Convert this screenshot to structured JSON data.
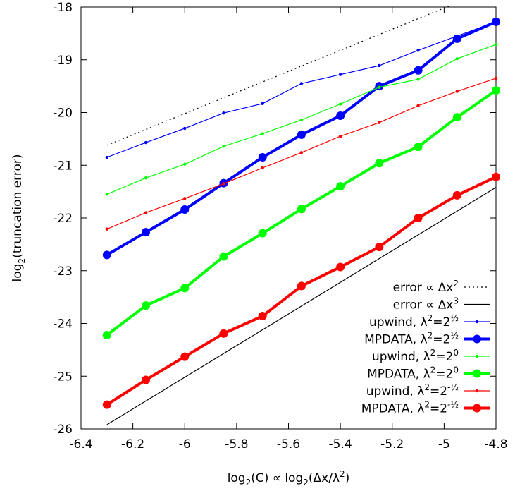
{
  "chart_data": {
    "type": "line",
    "title": "",
    "xlabel": {
      "pre": "log",
      "sub": "2",
      "mid": "(C) ∝ log",
      "sub2": "2",
      "mid2": "(Δx/λ",
      "sup": "2",
      "post": ")"
    },
    "ylabel": {
      "pre": "log",
      "sub": "2",
      "post": "(truncation error)"
    },
    "xlim": [
      -6.4,
      -4.8
    ],
    "ylim": [
      -26,
      -18
    ],
    "xticks": [
      -6.4,
      -6.2,
      -6.0,
      -5.8,
      -5.6,
      -5.4,
      -5.2,
      -5.0,
      -4.8
    ],
    "xtick_labels": [
      "-6.4",
      "-6.2",
      "-6",
      "-5.8",
      "-5.6",
      "-5.4",
      "-5.2",
      "-5",
      "-4.8"
    ],
    "yticks": [
      -26,
      -25,
      -24,
      -23,
      -22,
      -21,
      -20,
      -19,
      -18
    ],
    "ytick_labels": [
      "-26",
      "-25",
      "-24",
      "-23",
      "-22",
      "-21",
      "-20",
      "-19",
      "-18"
    ],
    "grid": false,
    "legend_position": "bottom-right",
    "x": [
      -6.3,
      -6.15,
      -6.0,
      -5.85,
      -5.7,
      -5.55,
      -5.4,
      -5.25,
      -5.1,
      -4.95,
      -4.8
    ],
    "references": [
      {
        "name": "error ∝ Δx",
        "sup": "2",
        "style": "dotted",
        "color": "#000000",
        "x": [
          -6.3,
          -4.97
        ],
        "y": [
          -20.62,
          -17.96
        ]
      },
      {
        "name": "error ∝ Δx",
        "sup": "3",
        "style": "solid",
        "color": "#000000",
        "x": [
          -6.3,
          -4.8
        ],
        "y": [
          -25.92,
          -21.42
        ]
      }
    ],
    "series": [
      {
        "name": "upwind, λ",
        "sup": "2",
        "eq": "=2",
        "exp": "½",
        "color": "#0000ff",
        "thick": false,
        "values": [
          -20.85,
          -20.57,
          -20.3,
          -20.01,
          -19.83,
          -19.45,
          -19.28,
          -19.11,
          -18.82,
          -18.55,
          -18.28
        ]
      },
      {
        "name": "MPDATA, λ",
        "sup": "2",
        "eq": "=2",
        "exp": "½",
        "color": "#0000ff",
        "thick": true,
        "values": [
          -22.7,
          -22.27,
          -21.84,
          -21.34,
          -20.85,
          -20.42,
          -20.06,
          -19.5,
          -19.2,
          -18.6,
          -18.28
        ]
      },
      {
        "name": "upwind, λ",
        "sup": "2",
        "eq": "=2",
        "exp": "0",
        "color": "#00ff00",
        "thick": false,
        "values": [
          -21.55,
          -21.24,
          -20.98,
          -20.64,
          -20.4,
          -20.14,
          -19.84,
          -19.52,
          -19.37,
          -18.98,
          -18.71
        ]
      },
      {
        "name": "MPDATA, λ",
        "sup": "2",
        "eq": "=2",
        "exp": "0",
        "color": "#00ff00",
        "thick": true,
        "values": [
          -24.22,
          -23.66,
          -23.33,
          -22.73,
          -22.29,
          -21.83,
          -21.4,
          -20.96,
          -20.65,
          -20.09,
          -19.58
        ]
      },
      {
        "name": "upwind, λ",
        "sup": "2",
        "eq": "=2",
        "exp": "-½",
        "color": "#ff0000",
        "thick": false,
        "values": [
          -22.21,
          -21.9,
          -21.63,
          -21.35,
          -21.05,
          -20.76,
          -20.45,
          -20.19,
          -19.87,
          -19.6,
          -19.35
        ]
      },
      {
        "name": "MPDATA, λ",
        "sup": "2",
        "eq": "=2",
        "exp": "-½",
        "color": "#ff0000",
        "thick": true,
        "values": [
          -25.54,
          -25.07,
          -24.63,
          -24.19,
          -23.86,
          -23.29,
          -22.93,
          -22.55,
          -22.0,
          -21.57,
          -21.22
        ]
      }
    ]
  }
}
